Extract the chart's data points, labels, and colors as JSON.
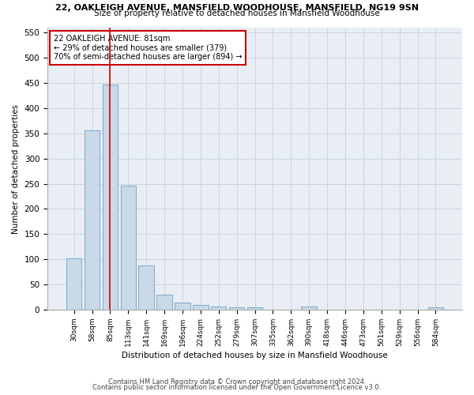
{
  "title1": "22, OAKLEIGH AVENUE, MANSFIELD WOODHOUSE, MANSFIELD, NG19 9SN",
  "title2": "Size of property relative to detached houses in Mansfield Woodhouse",
  "xlabel": "Distribution of detached houses by size in Mansfield Woodhouse",
  "ylabel": "Number of detached properties",
  "footer1": "Contains HM Land Registry data © Crown copyright and database right 2024.",
  "footer2": "Contains public sector information licensed under the Open Government Licence v3.0.",
  "bar_labels": [
    "30sqm",
    "58sqm",
    "85sqm",
    "113sqm",
    "141sqm",
    "169sqm",
    "196sqm",
    "224sqm",
    "252sqm",
    "279sqm",
    "307sqm",
    "335sqm",
    "362sqm",
    "390sqm",
    "418sqm",
    "446sqm",
    "473sqm",
    "501sqm",
    "529sqm",
    "556sqm",
    "584sqm"
  ],
  "bar_values": [
    102,
    356,
    447,
    246,
    88,
    30,
    14,
    10,
    6,
    5,
    5,
    0,
    0,
    6,
    0,
    0,
    0,
    0,
    0,
    0,
    5
  ],
  "bar_color": "#c9d9e8",
  "bar_edge_color": "#7aaac8",
  "annotation_box_text": "22 OAKLEIGH AVENUE: 81sqm\n← 29% of detached houses are smaller (379)\n70% of semi-detached houses are larger (894) →",
  "ylim": [
    0,
    560
  ],
  "yticks": [
    0,
    50,
    100,
    150,
    200,
    250,
    300,
    350,
    400,
    450,
    500,
    550
  ],
  "grid_color": "#c8d4de",
  "bg_color": "#e8eef4",
  "red_line_color": "#cc0000",
  "box_edge_color": "#cc0000"
}
